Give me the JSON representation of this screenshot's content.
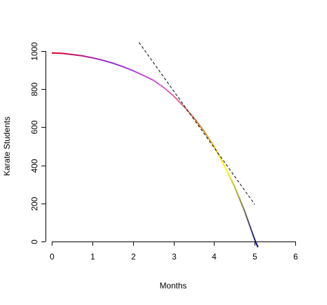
{
  "chart_data": {
    "type": "line",
    "title": "",
    "xlabel": "Months",
    "ylabel": "Karate Students",
    "xlim": [
      0,
      6
    ],
    "ylim": [
      0,
      1000
    ],
    "x_ticks": [
      0,
      1,
      2,
      3,
      4,
      5,
      6
    ],
    "y_ticks": [
      0,
      200,
      400,
      600,
      800,
      1000
    ],
    "x_tick_labels": [
      "0",
      "1",
      "2",
      "3",
      "4",
      "5",
      "6"
    ],
    "y_tick_labels": [
      "0",
      "200",
      "400",
      "600",
      "800",
      "1000"
    ],
    "grid": false,
    "legend": "none",
    "series": [
      {
        "style": "solid-gradient",
        "colors": [
          "#e0001a",
          "#8a2be2",
          "#e060c8",
          "#e07a20",
          "#ffff00",
          "#00008b"
        ],
        "color_stops": [
          0,
          0.3,
          0.55,
          0.72,
          0.85,
          1
        ],
        "x": [
          0,
          0.25,
          0.5,
          0.75,
          1,
          1.25,
          1.5,
          1.75,
          2,
          2.25,
          2.5,
          2.75,
          3,
          3.25,
          3.5,
          3.75,
          4,
          4.25,
          4.5,
          4.75,
          5,
          5.08
        ],
        "y": [
          990,
          988,
          982,
          975,
          965,
          952,
          937,
          918,
          897,
          873,
          847,
          810,
          765,
          710,
          650,
          580,
          500,
          400,
          290,
          160,
          10,
          -30
        ]
      },
      {
        "style": "dashed",
        "colors": [
          "#000000"
        ],
        "x": [
          2.15,
          5.0
        ],
        "y": [
          1045,
          195
        ]
      }
    ]
  }
}
